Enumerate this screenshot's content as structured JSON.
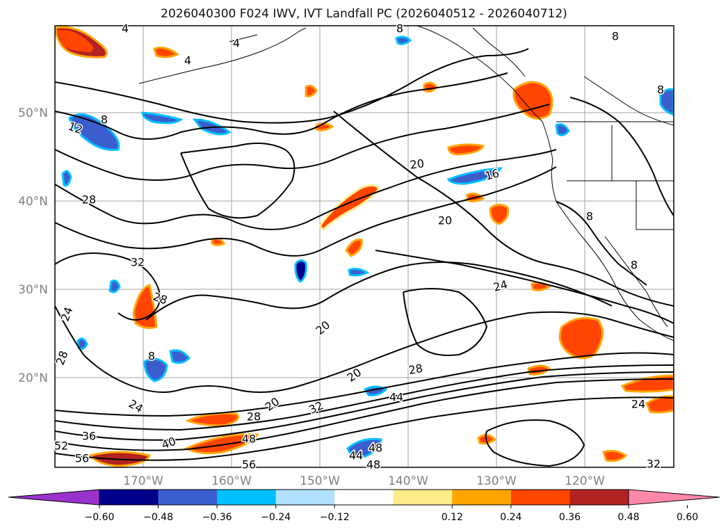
{
  "title": "2026040300 F024 IWV, IVT Landfall PC (2026040512 - 2026040712)",
  "lat_labels": [
    "50°N",
    "40°N",
    "30°N",
    "20°N"
  ],
  "lon_labels": [
    "170°W",
    "160°W",
    "150°W",
    "140°W",
    "130°W",
    "120°W"
  ],
  "colorbar": {
    "ticks": [
      "−0.60",
      "−0.48",
      "−0.36",
      "−0.24",
      "−0.12",
      "0.12",
      "0.24",
      "0.36",
      "0.48",
      "0.60"
    ],
    "colors": [
      "#9932cc",
      "#00008b",
      "#3a5fcd",
      "#00bfff",
      "#b0e2ff",
      "#ffffff",
      "#ffec8b",
      "#ffa500",
      "#ff4500",
      "#b22222",
      "#ff88aa"
    ]
  },
  "contour_labels": [
    "4",
    "4",
    "4",
    "8",
    "8",
    "8",
    "8",
    "12",
    "16",
    "20",
    "20",
    "20",
    "20",
    "20",
    "24",
    "24",
    "24",
    "24",
    "28",
    "28",
    "28",
    "28",
    "28",
    "32",
    "32",
    "32",
    "36",
    "40",
    "44",
    "44",
    "48",
    "48",
    "48",
    "52",
    "56",
    "56",
    "8",
    "8",
    "8"
  ]
}
